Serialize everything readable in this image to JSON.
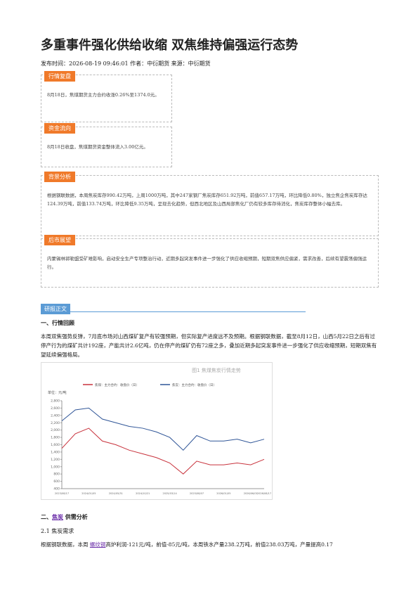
{
  "header": {
    "title": "多重事件强化供给收缩 双焦维持偏强运行态势",
    "meta": "发布时间：2026-08-19 09:46:01 作者：中衍期货 来源：中衍期货"
  },
  "boxes": [
    {
      "tag": "行情复盘",
      "text": "8月18日，焦煤期货主力合约收涨0.26%至1374.0元。"
    },
    {
      "tag": "资金流向",
      "text": "8月18日收盘，焦煤期货资金整体流入3.00亿元。"
    },
    {
      "tag": "背景分析",
      "text": "根据钢联数据，本周焦炭库存990.42万吨，上周1000万吨，其中247家钢厂焦炭库存651.92万吨，前值657.17万吨，环比降低0.80%，独立焦企焦炭库存达124.39万吨，前值133.74万吨，环比降低9.35万吨，呈现去化趋势，但西北地区及山西局部焦化厂仍有较多库存待消化，焦炭库存整体小幅去库。"
    },
    {
      "tag": "后市展望",
      "text": "内蒙锡林郭勒盟受矿难影响，启动安全生产专项整治行动，近期多起突发事件进一步强化了供应收缩预期，短期双焦供应偏紧，需求改善，后续有望震荡偏强运行。"
    }
  ],
  "body": {
    "tag": "研报正文",
    "h1": "一、行情回顾",
    "p1": "本周双焦强势反弹，7月底市场对山西煤矿复产有较强预期，但实际复产进度远不及预期。根据钢联数据，截至8月12日，山西5月22日之后有过停产行为的煤矿共计192座，产能共计2.6亿吨，仍在停产的煤矿仍有72座之多，叠加近期多起突发事件进一步强化了供应收缩预期，短期双焦有望延续偏强格局。",
    "h2": [
      "二、",
      "焦炭",
      "供需分析"
    ],
    "h3": "2.1 焦炭需求",
    "p2": [
      "根据钢联数据，本周",
      "螺纹钢",
      "高炉利润-121元/吨，前值-85元/吨，本周铁水产量238.2万吨，前值238.03万吨，产量提高0.17"
    ]
  },
  "chart_data": {
    "type": "line",
    "title": "图1 焦煤焦炭行情走势",
    "y_label": "单位：元/吨",
    "categories": [
      "2023/08/17",
      "2023/10/25",
      "2024/01/05",
      "2024/03/22",
      "2024/05/31",
      "2024/08/08",
      "2024/10/21",
      "2024/12/31",
      "2025/03/14",
      "2025/05/26",
      "2025/08/07",
      "2025/10/22",
      "2026/01/05",
      "2026/03/19",
      "2026/06/01",
      "2026/08/17"
    ],
    "series": [
      {
        "name": "焦煤：主力合约：收盘价（日）",
        "color": "#c8323c",
        "values": [
          1500,
          1900,
          2050,
          1700,
          1600,
          1450,
          1350,
          1250,
          1100,
          800,
          1150,
          1050,
          1050,
          1100,
          1050,
          1200
        ]
      },
      {
        "name": "焦炭：主力合约：收盘价（日）",
        "color": "#2f5597",
        "values": [
          2250,
          2550,
          2600,
          2300,
          2200,
          2100,
          2050,
          1950,
          1800,
          1450,
          1850,
          1700,
          1700,
          1750,
          1650,
          1750
        ]
      }
    ],
    "ylim": [
      400,
      2800
    ],
    "yticks": [
      400,
      600,
      800,
      {
        "value": 1000,
        "label": "1,000"
      },
      {
        "value": 1200,
        "label": "1,200"
      },
      {
        "value": 1400,
        "label": "1,400"
      },
      {
        "value": 1600,
        "label": "1,600"
      },
      {
        "value": 1800,
        "label": "1,800"
      },
      {
        "value": 2000,
        "label": "2,000"
      },
      {
        "value": 2200,
        "label": "2,200"
      },
      {
        "value": 2400,
        "label": "2,400"
      },
      {
        "value": 2600,
        "label": "2,600"
      },
      {
        "value": 2800,
        "label": "2,800"
      }
    ]
  }
}
